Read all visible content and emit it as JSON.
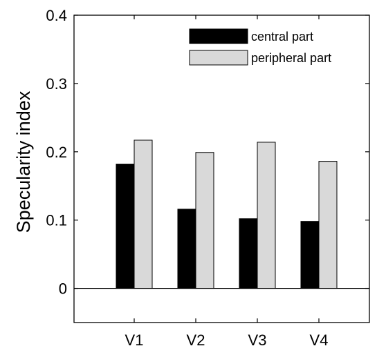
{
  "chart_data": {
    "type": "bar",
    "title": "",
    "xlabel": "",
    "ylabel": "Specularity index",
    "ylim": [
      -0.05,
      0.4
    ],
    "yticks": [
      0,
      0.1,
      0.2,
      0.3,
      0.4
    ],
    "ytick_labels": [
      "0",
      "0.1",
      "0.2",
      "0.3",
      "0.4"
    ],
    "zero_line": true,
    "grid": false,
    "legend_position": "top-right",
    "categories": [
      "V1",
      "V2",
      "V3",
      "V4"
    ],
    "series": [
      {
        "name": "central part",
        "color": "#000000",
        "values": [
          0.182,
          0.116,
          0.102,
          0.098
        ]
      },
      {
        "name": "peripheral part",
        "color": "#d9d9d9",
        "values": [
          0.217,
          0.199,
          0.214,
          0.186
        ]
      }
    ]
  }
}
